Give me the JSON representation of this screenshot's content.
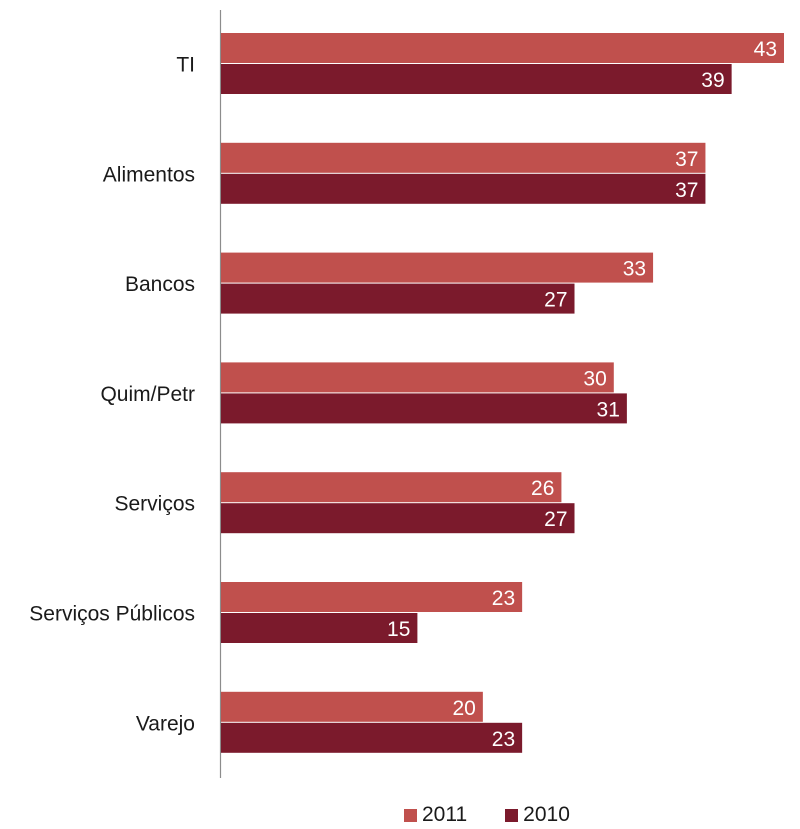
{
  "chart_data": {
    "type": "bar",
    "orientation": "horizontal",
    "categories": [
      "TI",
      "Alimentos",
      "Bancos",
      "Quim/Petr",
      "Serviços",
      "Serviços Públicos",
      "Varejo"
    ],
    "series": [
      {
        "name": "2011",
        "values": [
          43,
          37,
          33,
          30,
          26,
          23,
          20
        ],
        "color": "#c0504d"
      },
      {
        "name": "2010",
        "values": [
          39,
          37,
          27,
          31,
          27,
          15,
          23
        ],
        "color": "#7b1a2c"
      }
    ],
    "xlim": [
      0,
      43
    ],
    "grid": false,
    "data_labels": true,
    "legend_position": "bottom",
    "title": "",
    "xlabel": "",
    "ylabel": ""
  }
}
